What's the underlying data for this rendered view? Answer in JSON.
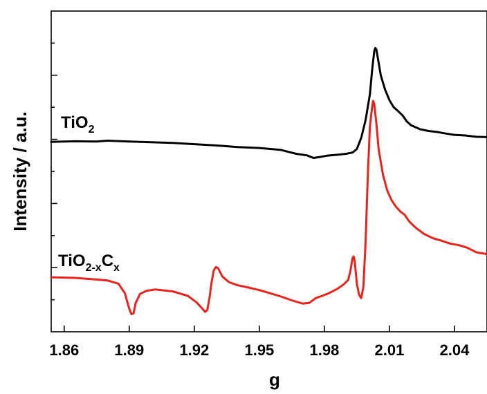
{
  "chart_data": {
    "type": "line",
    "xlabel": "g",
    "ylabel": "Intensity / a.u.",
    "xlim": [
      1.854,
      2.055
    ],
    "ylim": [
      0,
      10
    ],
    "xticks": [
      "1.86",
      "1.89",
      "1.92",
      "1.95",
      "1.98",
      "2.01",
      "2.04"
    ],
    "grid": false,
    "y_tick_labels_shown": false,
    "series": [
      {
        "name": "TiO2",
        "label_main": "TiO",
        "label_sub": "2",
        "color": "#000000",
        "points": [
          [
            1.854,
            5.92
          ],
          [
            1.865,
            5.94
          ],
          [
            1.875,
            5.93
          ],
          [
            1.88,
            5.96
          ],
          [
            1.89,
            5.93
          ],
          [
            1.9,
            5.91
          ],
          [
            1.91,
            5.89
          ],
          [
            1.92,
            5.85
          ],
          [
            1.93,
            5.81
          ],
          [
            1.94,
            5.76
          ],
          [
            1.95,
            5.73
          ],
          [
            1.96,
            5.67
          ],
          [
            1.967,
            5.55
          ],
          [
            1.972,
            5.5
          ],
          [
            1.975,
            5.42
          ],
          [
            1.978,
            5.45
          ],
          [
            1.981,
            5.49
          ],
          [
            1.986,
            5.52
          ],
          [
            1.99,
            5.55
          ],
          [
            1.993,
            5.59
          ],
          [
            1.995,
            5.7
          ],
          [
            1.997,
            6.05
          ],
          [
            1.999,
            6.6
          ],
          [
            2.001,
            7.4
          ],
          [
            2.002,
            8.15
          ],
          [
            2.003,
            8.75
          ],
          [
            2.0035,
            8.85
          ],
          [
            2.004,
            8.8
          ],
          [
            2.005,
            8.4
          ],
          [
            2.006,
            8.0
          ],
          [
            2.008,
            7.55
          ],
          [
            2.01,
            7.22
          ],
          [
            2.012,
            7.0
          ],
          [
            2.014,
            6.88
          ],
          [
            2.016,
            6.75
          ],
          [
            2.018,
            6.56
          ],
          [
            2.02,
            6.44
          ],
          [
            2.022,
            6.38
          ],
          [
            2.024,
            6.32
          ],
          [
            2.028,
            6.26
          ],
          [
            2.032,
            6.23
          ],
          [
            2.036,
            6.18
          ],
          [
            2.04,
            6.14
          ],
          [
            2.045,
            6.12
          ],
          [
            2.05,
            6.08
          ],
          [
            2.055,
            6.07
          ]
        ]
      },
      {
        "name": "TiO2-xCx",
        "label_main": "TiO",
        "label_sub": "2-x",
        "label_main2": "C",
        "label_sub2": "x",
        "color": "#e8231b",
        "points": [
          [
            1.854,
            1.7
          ],
          [
            1.865,
            1.68
          ],
          [
            1.875,
            1.63
          ],
          [
            1.88,
            1.6
          ],
          [
            1.885,
            1.5
          ],
          [
            1.888,
            1.2
          ],
          [
            1.89,
            0.72
          ],
          [
            1.891,
            0.55
          ],
          [
            1.892,
            0.58
          ],
          [
            1.893,
            0.9
          ],
          [
            1.895,
            1.18
          ],
          [
            1.898,
            1.28
          ],
          [
            1.902,
            1.32
          ],
          [
            1.91,
            1.26
          ],
          [
            1.917,
            1.12
          ],
          [
            1.921,
            0.92
          ],
          [
            1.924,
            0.7
          ],
          [
            1.925,
            0.62
          ],
          [
            1.926,
            0.68
          ],
          [
            1.927,
            1.05
          ],
          [
            1.928,
            1.55
          ],
          [
            1.929,
            1.92
          ],
          [
            1.93,
            2.02
          ],
          [
            1.931,
            1.98
          ],
          [
            1.933,
            1.72
          ],
          [
            1.936,
            1.55
          ],
          [
            1.94,
            1.45
          ],
          [
            1.945,
            1.38
          ],
          [
            1.95,
            1.3
          ],
          [
            1.955,
            1.2
          ],
          [
            1.96,
            1.1
          ],
          [
            1.965,
            0.98
          ],
          [
            1.97,
            0.88
          ],
          [
            1.973,
            0.9
          ],
          [
            1.976,
            1.05
          ],
          [
            1.979,
            1.12
          ],
          [
            1.982,
            1.2
          ],
          [
            1.986,
            1.34
          ],
          [
            1.989,
            1.48
          ],
          [
            1.991,
            1.62
          ],
          [
            1.992,
            1.9
          ],
          [
            1.993,
            2.3
          ],
          [
            1.9935,
            2.35
          ],
          [
            1.994,
            2.2
          ],
          [
            1.995,
            1.5
          ],
          [
            1.996,
            1.15
          ],
          [
            1.997,
            1.05
          ],
          [
            1.998,
            1.4
          ],
          [
            1.999,
            2.8
          ],
          [
            2.0,
            4.8
          ],
          [
            2.001,
            6.4
          ],
          [
            2.002,
            7.0
          ],
          [
            2.0025,
            7.2
          ],
          [
            2.003,
            7.1
          ],
          [
            2.004,
            6.5
          ],
          [
            2.005,
            5.7
          ],
          [
            2.007,
            4.9
          ],
          [
            2.009,
            4.4
          ],
          [
            2.011,
            4.1
          ],
          [
            2.013,
            3.9
          ],
          [
            2.015,
            3.75
          ],
          [
            2.017,
            3.65
          ],
          [
            2.019,
            3.45
          ],
          [
            2.022,
            3.25
          ],
          [
            2.026,
            3.05
          ],
          [
            2.03,
            2.92
          ],
          [
            2.034,
            2.84
          ],
          [
            2.038,
            2.75
          ],
          [
            2.042,
            2.7
          ],
          [
            2.046,
            2.62
          ],
          [
            2.05,
            2.48
          ],
          [
            2.055,
            2.42
          ]
        ]
      }
    ]
  }
}
